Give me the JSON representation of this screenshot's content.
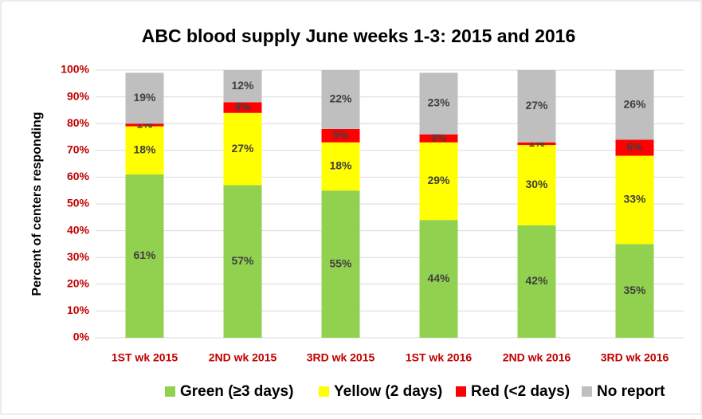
{
  "chart_data": {
    "type": "stacked_bar",
    "title": "ABC blood supply June weeks 1-3: 2015 and 2016",
    "y_label": "Percent of centers responding",
    "categories": [
      "1ST wk 2015",
      "2ND wk 2015",
      "3RD wk 2015",
      "1ST wk 2016",
      "2ND wk 2016",
      "3RD wk 2016"
    ],
    "series": [
      {
        "name": "Green (≥3 days)",
        "color": "#92d050",
        "values": [
          61,
          57,
          55,
          44,
          42,
          35
        ],
        "value_labels": [
          "61%",
          "57%",
          "55%",
          "44%",
          "42%",
          "35%"
        ]
      },
      {
        "name": "Yellow (2 days)",
        "color": "#ffff00",
        "values": [
          18,
          27,
          18,
          29,
          30,
          33
        ],
        "value_labels": [
          "18%",
          "27%",
          "18%",
          "29%",
          "30%",
          "33%"
        ]
      },
      {
        "name": "Red (<2 days)",
        "color": "#ff0000",
        "values": [
          1,
          4,
          5,
          3,
          1,
          6
        ],
        "value_labels": [
          "1%",
          "4%",
          "5%",
          "3%",
          "1%",
          "6%"
        ]
      },
      {
        "name": "No report",
        "color": "#bfbfbf",
        "values": [
          19,
          12,
          22,
          23,
          27,
          26
        ],
        "value_labels": [
          "19%",
          "12%",
          "22%",
          "23%",
          "27%",
          "26%"
        ]
      }
    ],
    "ylim": [
      0,
      100
    ],
    "yticks": [
      {
        "value": 0,
        "label": "0%"
      },
      {
        "value": 10,
        "label": "10%"
      },
      {
        "value": 20,
        "label": "20%"
      },
      {
        "value": 30,
        "label": "30%"
      },
      {
        "value": 40,
        "label": "40%"
      },
      {
        "value": 50,
        "label": "50%"
      },
      {
        "value": 60,
        "label": "60%"
      },
      {
        "value": 70,
        "label": "70%"
      },
      {
        "value": 80,
        "label": "80%"
      },
      {
        "value": 90,
        "label": "90%"
      },
      {
        "value": 100,
        "label": "100%"
      }
    ],
    "grid": true,
    "legend": "bottom"
  }
}
